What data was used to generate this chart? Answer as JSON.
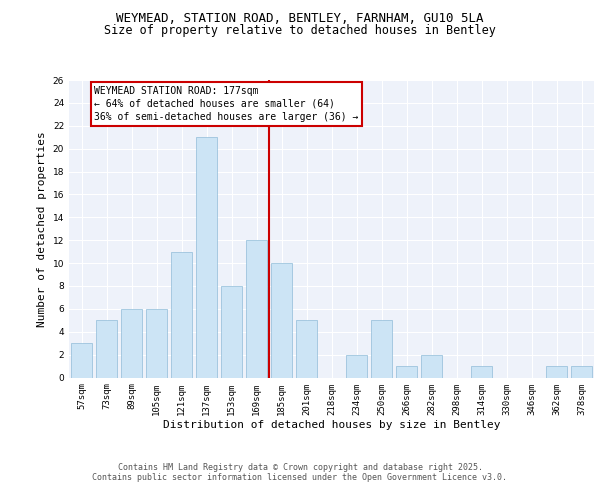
{
  "title": "WEYMEAD, STATION ROAD, BENTLEY, FARNHAM, GU10 5LA",
  "subtitle": "Size of property relative to detached houses in Bentley",
  "xlabel": "Distribution of detached houses by size in Bentley",
  "ylabel": "Number of detached properties",
  "categories": [
    "57sqm",
    "73sqm",
    "89sqm",
    "105sqm",
    "121sqm",
    "137sqm",
    "153sqm",
    "169sqm",
    "185sqm",
    "201sqm",
    "218sqm",
    "234sqm",
    "250sqm",
    "266sqm",
    "282sqm",
    "298sqm",
    "314sqm",
    "330sqm",
    "346sqm",
    "362sqm",
    "378sqm"
  ],
  "values": [
    3,
    5,
    6,
    6,
    11,
    21,
    8,
    12,
    10,
    5,
    0,
    2,
    5,
    1,
    2,
    0,
    1,
    0,
    0,
    1,
    1
  ],
  "bar_color": "#cce4f5",
  "bar_edgecolor": "#90bcd8",
  "vline_color": "#cc0000",
  "annotation_title": "WEYMEAD STATION ROAD: 177sqm",
  "annotation_line1": "← 64% of detached houses are smaller (64)",
  "annotation_line2": "36% of semi-detached houses are larger (36) →",
  "ylim": [
    0,
    26
  ],
  "yticks": [
    0,
    2,
    4,
    6,
    8,
    10,
    12,
    14,
    16,
    18,
    20,
    22,
    24,
    26
  ],
  "background_color": "#eef2fa",
  "grid_color": "#ffffff",
  "footer1": "Contains HM Land Registry data © Crown copyright and database right 2025.",
  "footer2": "Contains public sector information licensed under the Open Government Licence v3.0.",
  "title_fontsize": 9,
  "subtitle_fontsize": 8.5,
  "axis_label_fontsize": 8,
  "tick_fontsize": 6.5,
  "annotation_fontsize": 7,
  "footer_fontsize": 6
}
